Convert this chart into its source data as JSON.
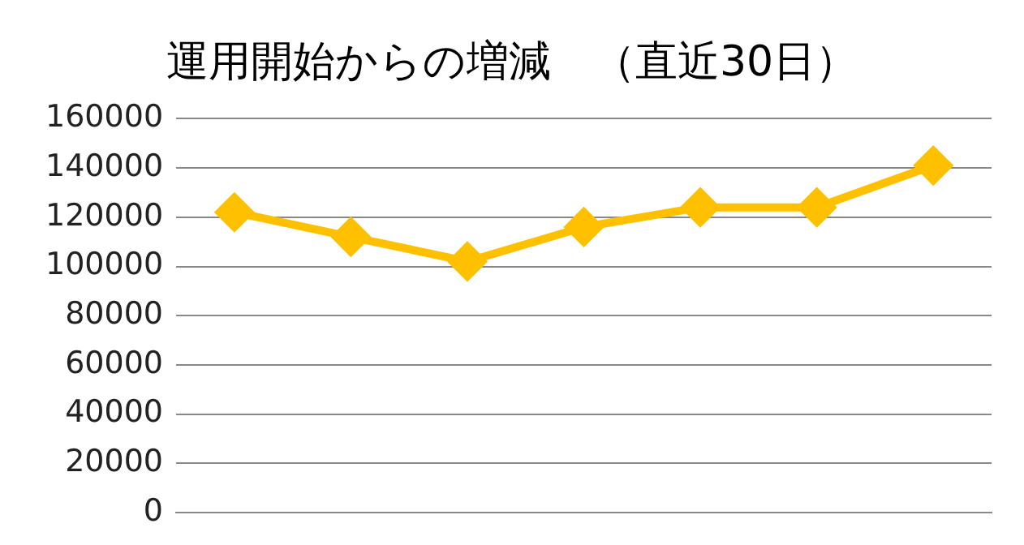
{
  "chart_data": {
    "type": "line",
    "title": "運用開始からの増減　（直近30日）",
    "categories": [
      null,
      null,
      null,
      null,
      null,
      null,
      null
    ],
    "series": [
      {
        "color": "#ffc000",
        "values": [
          122000,
          112000,
          102000,
          116000,
          124000,
          124000,
          141000
        ]
      }
    ],
    "ylim": [
      0,
      160000
    ],
    "yticks": [
      0,
      20000,
      40000,
      60000,
      80000,
      100000,
      120000,
      140000,
      160000
    ],
    "grid": "y",
    "legend": false,
    "marker": "diamond",
    "line_style": "solid"
  }
}
